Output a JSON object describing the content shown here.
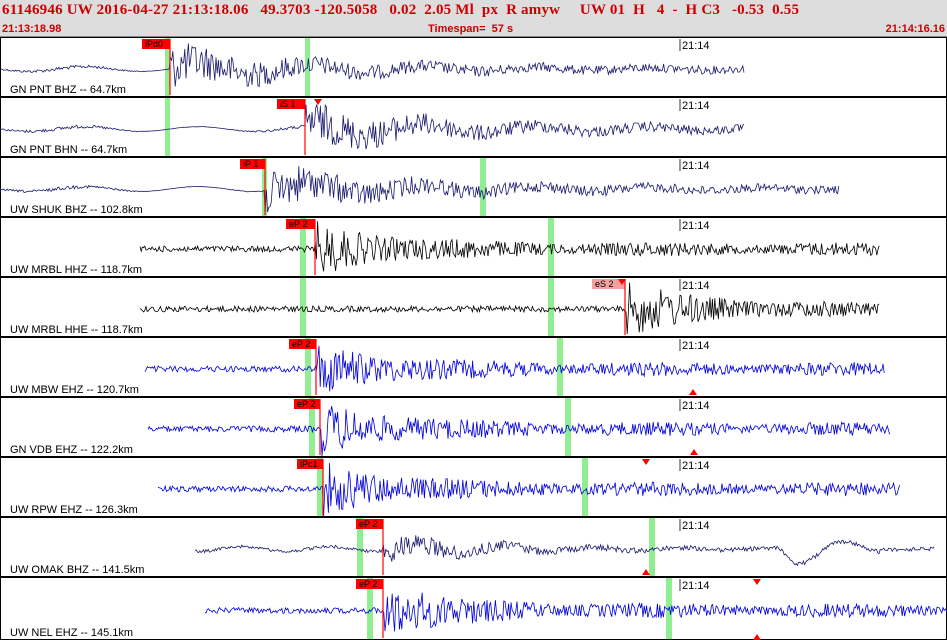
{
  "header": {
    "summary": "61146946 UW 2016-04-27 21:13:18.06   49.3703 -120.5058   0.02  2.05 Ml  px  R amyw     UW 01  H   4  -  H C3   -0.53  0.55",
    "start_time": "21:13:18.98",
    "timespan": "Timespan=  57 s",
    "end_time": "21:14:16.16"
  },
  "colors": {
    "panel_border": "#000000",
    "pick_fill": "#ff0000",
    "pick_fill_soft": "#f4a0a0",
    "green_band": "#90ee90",
    "triangle": "#ff0000",
    "trace_navy": "#1a1a6e",
    "trace_black": "#000000",
    "trace_blue": "#0000dd"
  },
  "traces": [
    {
      "label": "GN PNT BHZ -- 64.7km",
      "time_tick": "21:14",
      "pick": "iPd0",
      "color": "navy"
    },
    {
      "label": "GN PNT BHN -- 64.7km",
      "time_tick": "21:14",
      "pick": "iS 1",
      "color": "navy"
    },
    {
      "label": "UW SHUK BHZ -- 102.8km",
      "time_tick": "21:14",
      "pick": "iP 1",
      "color": "navy"
    },
    {
      "label": "UW MRBL HHZ -- 118.7km",
      "time_tick": "21:14",
      "pick": "eP 2",
      "color": "black"
    },
    {
      "label": "UW MRBL HHE -- 118.7km",
      "time_tick": "21:14",
      "pick": "eS 2",
      "color": "black"
    },
    {
      "label": "UW MBW EHZ -- 120.7km",
      "time_tick": "21:14",
      "pick": "eP 2",
      "color": "blue"
    },
    {
      "label": "GN VDB EHZ -- 122.2km",
      "time_tick": "21:14",
      "pick": "eP 2",
      "color": "blue"
    },
    {
      "label": "UW RPW EHZ -- 126.3km",
      "time_tick": "21:14",
      "pick": "iPc1",
      "color": "blue"
    },
    {
      "label": "UW OMAK BHZ -- 141.5km",
      "time_tick": "21:14",
      "pick": "eP 2",
      "color": "navy"
    },
    {
      "label": "UW NEL EHZ -- 145.1km",
      "time_tick": "21:14",
      "pick": "eP 2",
      "color": "blue"
    }
  ]
}
